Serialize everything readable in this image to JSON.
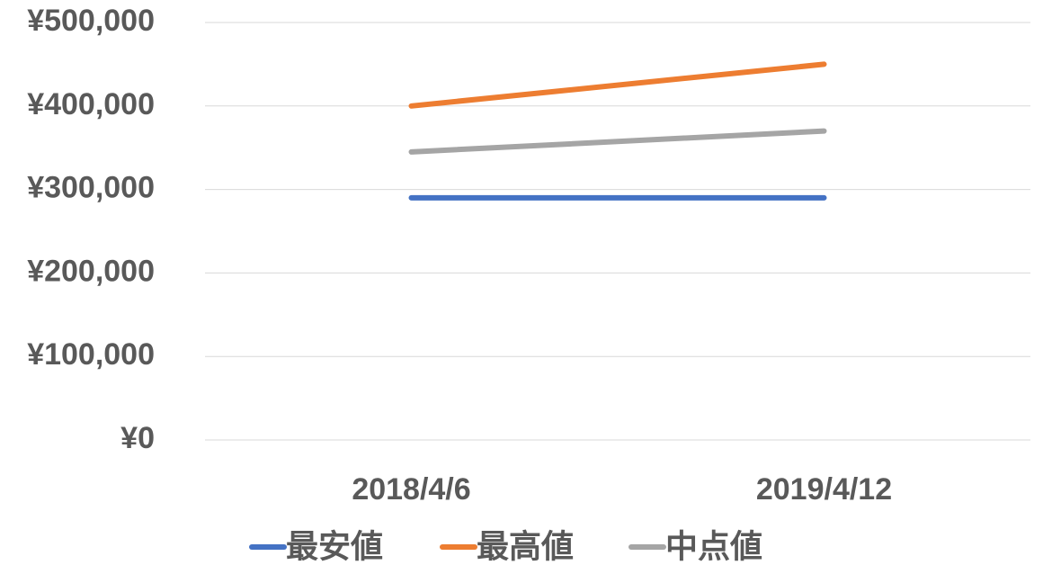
{
  "chart_data": {
    "type": "line",
    "categories": [
      "2018/4/6",
      "2019/4/12"
    ],
    "series": [
      {
        "name": "最安値",
        "color": "#4472c4",
        "values": [
          290000,
          290000
        ]
      },
      {
        "name": "最高値",
        "color": "#ed7d31",
        "values": [
          400000,
          450000
        ]
      },
      {
        "name": "中点値",
        "color": "#a5a5a5",
        "values": [
          345000,
          370000
        ]
      }
    ],
    "ylim": [
      0,
      500000
    ],
    "yticks": [
      {
        "value": 0,
        "label": "¥0"
      },
      {
        "value": 100000,
        "label": "¥100,000"
      },
      {
        "value": 200000,
        "label": "¥200,000"
      },
      {
        "value": 300000,
        "label": "¥300,000"
      },
      {
        "value": 400000,
        "label": "¥400,000"
      },
      {
        "value": 500000,
        "label": "¥500,000"
      }
    ],
    "grid": true,
    "legend": "bottom"
  }
}
